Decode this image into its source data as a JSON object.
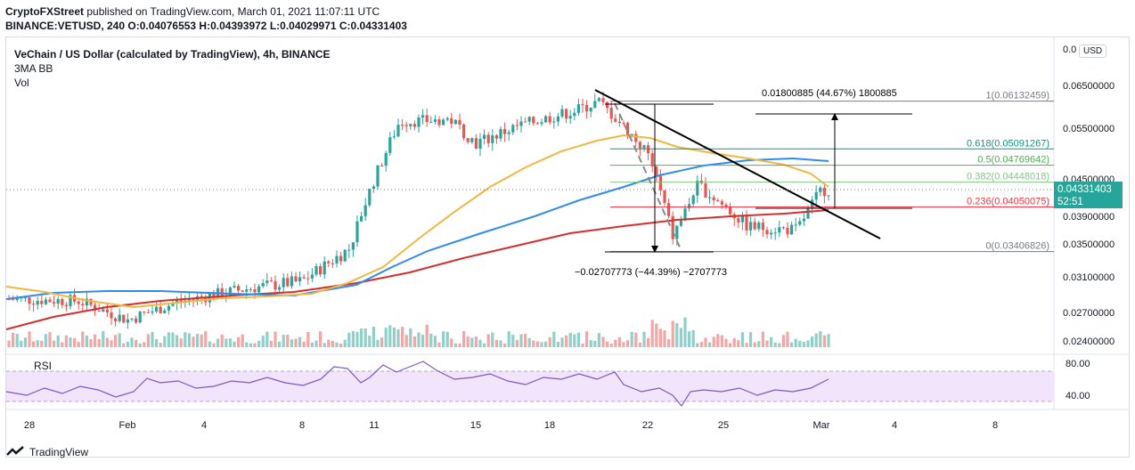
{
  "header": {
    "publisher": "CryptoFXStreet",
    "published_on": "published on TradingView.com, March 01, 2021 11:07:11 UTC",
    "ohlc": "BINANCE:VETUSD, 240 O:0.04076553 H:0.04393972 L:0.04029971 C:0.04331403"
  },
  "legend": {
    "title": "VeChain / US Dollar (calculated by TradingView), 4h, BINANCE",
    "indicator": "3MA BB",
    "volume": "Vol"
  },
  "rsi_label": "RSI",
  "currency": "USD",
  "current_price": "0.04331403",
  "countdown": "52:51",
  "footer_brand": "TradingView",
  "colors": {
    "up": "#26a69a",
    "down": "#ef5350",
    "ma_yellow": "#f0b840",
    "ma_blue": "#2e8cf0",
    "ma_red": "#d32f2f",
    "rsi": "#7e57c2",
    "rsi_band": "#f1e4fb"
  },
  "annotations": {
    "upper_measure": "0.01800885 (44.67%) 1800885",
    "lower_measure": "−0.02707773 (−44.39%) −2707773"
  },
  "chart_data": {
    "type": "line",
    "title": "VeChain / US Dollar (calculated by TradingView), 4h, BINANCE",
    "y_ticks": [
      "0.0",
      "0.06500000",
      "0.05500000",
      "0.04500000",
      "0.03900000",
      "0.03500000",
      "0.03100000",
      "0.02700000",
      "0.02400000"
    ],
    "x_ticks": [
      "28",
      "Feb",
      "4",
      "8",
      "11",
      "15",
      "18",
      "22",
      "25",
      "Mar",
      "4",
      "8"
    ],
    "rsi_ticks": [
      "80.00",
      "40.00"
    ],
    "fib_levels": [
      {
        "label": "1(0.06132459)",
        "value": 0.06132459
      },
      {
        "label": "0.618(0.05091267)",
        "value": 0.05091267
      },
      {
        "label": "0.5(0.04769642)",
        "value": 0.04769642
      },
      {
        "label": "0.382(0.04448018)",
        "value": 0.04448018
      },
      {
        "label": "0.236(0.04050075)",
        "value": 0.04050075
      },
      {
        "label": "0(0.03406826)",
        "value": 0.03406826
      }
    ],
    "close_approx": [
      {
        "x": "2021-01-27",
        "y": 0.0285
      },
      {
        "x": "2021-01-30",
        "y": 0.0283
      },
      {
        "x": "2021-02-01",
        "y": 0.0262
      },
      {
        "x": "2021-02-03",
        "y": 0.0282
      },
      {
        "x": "2021-02-06",
        "y": 0.0298
      },
      {
        "x": "2021-02-08",
        "y": 0.0305
      },
      {
        "x": "2021-02-10",
        "y": 0.0345
      },
      {
        "x": "2021-02-11",
        "y": 0.045
      },
      {
        "x": "2021-02-12",
        "y": 0.0565
      },
      {
        "x": "2021-02-14",
        "y": 0.057
      },
      {
        "x": "2021-02-15",
        "y": 0.052
      },
      {
        "x": "2021-02-17",
        "y": 0.056
      },
      {
        "x": "2021-02-19",
        "y": 0.059
      },
      {
        "x": "2021-02-20",
        "y": 0.0612
      },
      {
        "x": "2021-02-22",
        "y": 0.05
      },
      {
        "x": "2021-02-23",
        "y": 0.036
      },
      {
        "x": "2021-02-24",
        "y": 0.044
      },
      {
        "x": "2021-02-26",
        "y": 0.0375
      },
      {
        "x": "2021-02-28",
        "y": 0.037
      },
      {
        "x": "2021-03-01",
        "y": 0.0433
      }
    ]
  }
}
